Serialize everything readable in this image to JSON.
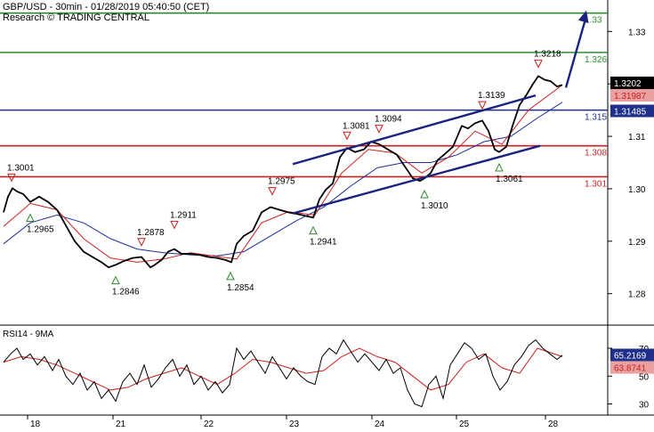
{
  "header": {
    "title": "GBP/USD - 30min - 01/28/2019 05:40:50 (CET)",
    "subtitle": "Research © TRADING CENTRAL"
  },
  "colors": {
    "price": "#000000",
    "ma_fast": "#cc1f1f",
    "ma_slow": "#1f2f9a",
    "resistance_green": "#2e8b2e",
    "support_red": "#cc1f1f",
    "pivot_blue": "#1f2f8a",
    "channel": "#1a237e",
    "arrow": "#1a237e",
    "pointer_green": "#2e8b2e",
    "pointer_red": "#cc1f1f"
  },
  "chart_data": [
    {
      "type": "line",
      "series_type": "candlestick-style price line with moving averages",
      "x_ticks": [
        "18",
        "21",
        "22",
        "23",
        "24",
        "25",
        "28"
      ],
      "y_ticks": [
        "1.33",
        "1.32",
        "1.31",
        "1.30",
        "1.29",
        "1.28"
      ],
      "ylim": [
        1.274,
        1.336
      ],
      "last_price_label": "1.3202",
      "ma_label": "1.31987",
      "pivot_label": "1.31485",
      "levels": [
        {
          "label": "1.33",
          "value": 1.3335,
          "role": "resistance"
        },
        {
          "label": "1.326",
          "value": 1.326,
          "role": "resistance"
        },
        {
          "label": "1.315",
          "value": 1.315,
          "role": "pivot"
        },
        {
          "label": "1.308",
          "value": 1.3082,
          "role": "support"
        },
        {
          "label": "1.301",
          "value": 1.3023,
          "role": "support"
        }
      ],
      "annotations": [
        {
          "text": "1.3001",
          "t": 9,
          "value": 1.3001,
          "kind": "high"
        },
        {
          "text": "1.2965",
          "t": 30,
          "value": 1.2965,
          "kind": "low"
        },
        {
          "text": "1.2846",
          "t": 126,
          "value": 1.2846,
          "kind": "low"
        },
        {
          "text": "1.2878",
          "t": 155,
          "value": 1.2878,
          "kind": "high"
        },
        {
          "text": "1.2911",
          "t": 192,
          "value": 1.2911,
          "kind": "high"
        },
        {
          "text": "1.2854",
          "t": 255,
          "value": 1.2854,
          "kind": "low"
        },
        {
          "text": "1.2975",
          "t": 302,
          "value": 1.2975,
          "kind": "high"
        },
        {
          "text": "1.2941",
          "t": 348,
          "value": 1.2941,
          "kind": "low"
        },
        {
          "text": "1.3081",
          "t": 386,
          "value": 1.3081,
          "kind": "high"
        },
        {
          "text": "1.3094",
          "t": 422,
          "value": 1.3094,
          "kind": "high"
        },
        {
          "text": "1.3010",
          "t": 473,
          "value": 1.301,
          "kind": "low"
        },
        {
          "text": "1.3139",
          "t": 538,
          "value": 1.3139,
          "kind": "high"
        },
        {
          "text": "1.3061",
          "t": 557,
          "value": 1.3061,
          "kind": "low"
        },
        {
          "text": "1.3218",
          "t": 601,
          "value": 1.3218,
          "kind": "high"
        }
      ],
      "price": {
        "t": [
          0,
          5,
          10,
          15,
          22,
          30,
          40,
          50,
          60,
          70,
          80,
          90,
          100,
          110,
          118,
          126,
          135,
          145,
          155,
          165,
          170,
          178,
          185,
          192,
          200,
          210,
          220,
          230,
          240,
          250,
          256,
          262,
          270,
          280,
          290,
          300,
          310,
          320,
          330,
          340,
          348,
          355,
          362,
          370,
          378,
          386,
          395,
          405,
          413,
          422,
          432,
          442,
          452,
          460,
          468,
          473,
          480,
          488,
          495,
          505,
          515,
          522,
          530,
          538,
          545,
          552,
          557,
          565,
          572,
          580,
          588,
          595,
          601,
          608,
          615,
          622,
          628
        ],
        "values": [
          1.2955,
          1.2985,
          1.3001,
          1.2995,
          1.299,
          1.2975,
          1.2985,
          1.2975,
          1.296,
          1.293,
          1.29,
          1.288,
          1.287,
          1.286,
          1.285,
          1.2855,
          1.2862,
          1.2868,
          1.287,
          1.285,
          1.2855,
          1.2865,
          1.288,
          1.2885,
          1.2876,
          1.2876,
          1.2874,
          1.287,
          1.2868,
          1.2864,
          1.286,
          1.2895,
          1.291,
          1.292,
          1.2955,
          1.2965,
          1.296,
          1.2955,
          1.2952,
          1.2948,
          1.2945,
          1.298,
          1.2998,
          1.301,
          1.306,
          1.3078,
          1.307,
          1.3075,
          1.309,
          1.3085,
          1.3075,
          1.3065,
          1.304,
          1.302,
          1.3015,
          1.302,
          1.303,
          1.3055,
          1.3065,
          1.308,
          1.312,
          1.3115,
          1.3125,
          1.313,
          1.311,
          1.3075,
          1.307,
          1.308,
          1.312,
          1.316,
          1.318,
          1.32,
          1.3215,
          1.3208,
          1.3205,
          1.3195,
          1.3198
        ]
      },
      "ma_fast": {
        "t": [
          0,
          30,
          60,
          90,
          120,
          150,
          180,
          210,
          240,
          262,
          290,
          320,
          350,
          380,
          410,
          440,
          470,
          500,
          530,
          560,
          590,
          628
        ],
        "values": [
          1.2928,
          1.2972,
          1.296,
          1.2905,
          1.2868,
          1.286,
          1.2866,
          1.2878,
          1.2871,
          1.2866,
          1.2935,
          1.2956,
          1.295,
          1.303,
          1.3075,
          1.3068,
          1.303,
          1.306,
          1.311,
          1.3085,
          1.315,
          1.3198
        ]
      },
      "ma_slow": {
        "t": [
          0,
          30,
          60,
          90,
          120,
          150,
          180,
          210,
          240,
          270,
          300,
          330,
          360,
          390,
          420,
          450,
          480,
          510,
          540,
          570,
          600,
          628
        ],
        "values": [
          1.2895,
          1.2935,
          1.295,
          1.2935,
          1.2905,
          1.2885,
          1.2878,
          1.2874,
          1.2872,
          1.288,
          1.291,
          1.294,
          1.2965,
          1.3005,
          1.304,
          1.305,
          1.305,
          1.3065,
          1.309,
          1.31,
          1.3135,
          1.3165
        ]
      },
      "channel": [
        {
          "t1": 325,
          "v1": 1.3047,
          "t2": 598,
          "v2": 1.3178
        },
        {
          "t1": 325,
          "v1": 1.2953,
          "t2": 603,
          "v2": 1.3082
        }
      ],
      "projection": {
        "t1": 632,
        "v1": 1.3193,
        "t2": 655,
        "v2": 1.334
      }
    },
    {
      "type": "line",
      "title": "RSI14 - 9MA",
      "x_ticks": [
        "18",
        "21",
        "22",
        "23",
        "24",
        "25",
        "28"
      ],
      "y_ticks": [
        "70",
        "50",
        "30"
      ],
      "ylim": [
        22,
        86
      ],
      "rsi_label": "65.2169",
      "ma_label": "63.8741",
      "rsi": {
        "t": [
          0,
          8,
          15,
          22,
          30,
          38,
          46,
          55,
          62,
          70,
          78,
          86,
          94,
          102,
          110,
          118,
          126,
          134,
          142,
          150,
          158,
          166,
          174,
          182,
          190,
          198,
          206,
          214,
          222,
          230,
          238,
          246,
          254,
          262,
          270,
          278,
          286,
          294,
          302,
          310,
          318,
          326,
          334,
          342,
          350,
          358,
          366,
          374,
          382,
          390,
          398,
          406,
          414,
          422,
          430,
          438,
          446,
          454,
          462,
          470,
          478,
          486,
          494,
          502,
          510,
          518,
          526,
          534,
          542,
          550,
          558,
          566,
          574,
          582,
          590,
          598,
          606,
          614,
          622,
          628
        ],
        "values": [
          60,
          66,
          70,
          62,
          66,
          58,
          64,
          54,
          62,
          50,
          44,
          52,
          40,
          46,
          34,
          40,
          32,
          46,
          52,
          44,
          58,
          42,
          48,
          56,
          62,
          50,
          58,
          44,
          50,
          40,
          46,
          38,
          44,
          70,
          62,
          68,
          60,
          52,
          64,
          56,
          48,
          56,
          50,
          46,
          44,
          64,
          70,
          66,
          76,
          68,
          60,
          66,
          60,
          54,
          62,
          52,
          56,
          40,
          30,
          28,
          44,
          50,
          34,
          58,
          66,
          74,
          70,
          62,
          66,
          50,
          40,
          46,
          58,
          64,
          72,
          76,
          70,
          66,
          62,
          65
        ]
      },
      "ma": {
        "t": [
          0,
          20,
          40,
          60,
          80,
          100,
          120,
          140,
          160,
          180,
          200,
          220,
          240,
          260,
          280,
          300,
          320,
          340,
          360,
          380,
          400,
          420,
          440,
          460,
          480,
          500,
          520,
          540,
          560,
          580,
          600,
          628
        ],
        "values": [
          60,
          64,
          62,
          58,
          52,
          46,
          40,
          42,
          48,
          52,
          56,
          50,
          44,
          52,
          62,
          60,
          56,
          52,
          54,
          64,
          70,
          64,
          60,
          50,
          40,
          44,
          60,
          66,
          56,
          52,
          70,
          64
        ]
      }
    }
  ]
}
